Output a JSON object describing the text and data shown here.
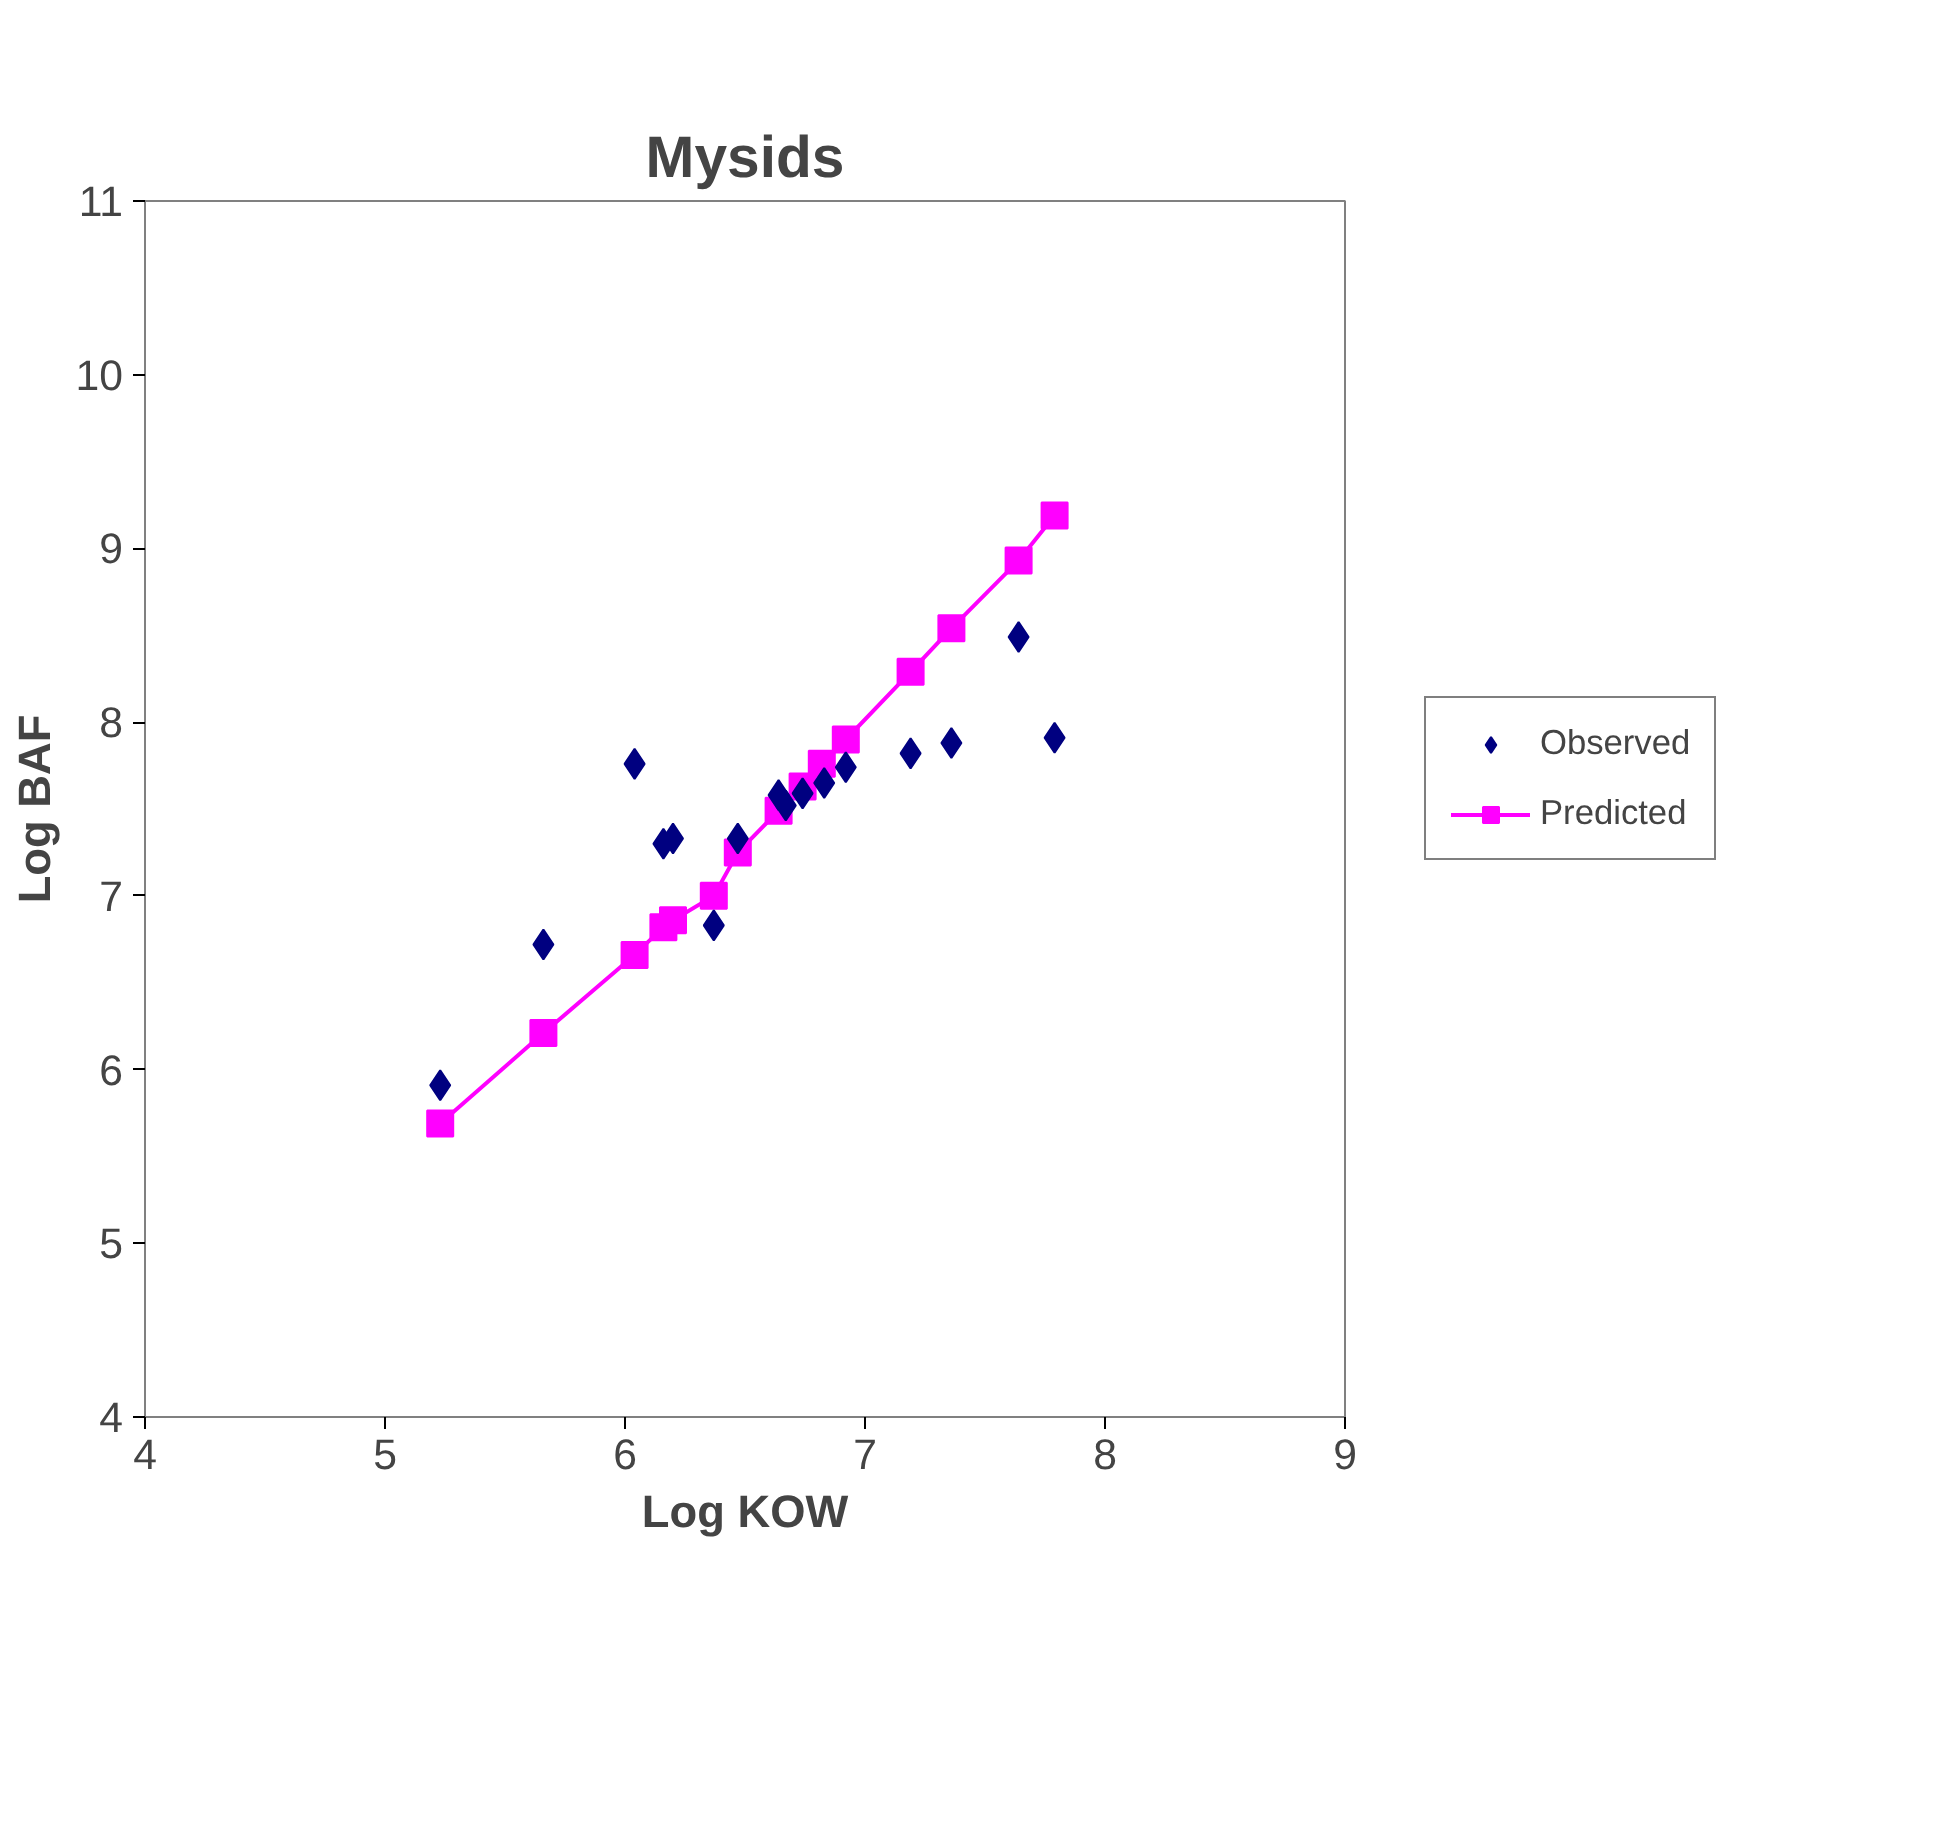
{
  "chart_data": {
    "type": "scatter",
    "title": "Mysids",
    "xlabel": "Log KOW",
    "ylabel": "Log BAF",
    "xlim": [
      4,
      9
    ],
    "xticks": [
      4,
      5,
      6,
      7,
      8,
      9
    ],
    "ylim": [
      4,
      11
    ],
    "yticks": [
      4,
      5,
      6,
      7,
      8,
      9,
      10,
      11
    ],
    "grid": false,
    "legend": "right",
    "series": [
      {
        "name": "Observed",
        "marker": "diamond",
        "color": "#000080",
        "x": [
          5.23,
          5.66,
          6.04,
          6.16,
          6.2,
          6.37,
          6.47,
          6.64,
          6.67,
          6.74,
          6.83,
          6.92,
          7.19,
          7.36,
          7.64,
          7.79
        ],
        "values": [
          5.91,
          6.72,
          7.76,
          7.3,
          7.33,
          6.83,
          7.33,
          7.58,
          7.52,
          7.59,
          7.65,
          7.74,
          7.82,
          7.88,
          8.49,
          7.91
        ]
      },
      {
        "name": "Predicted",
        "type": "line",
        "marker": "square",
        "color": "#ff00ff",
        "x": [
          5.23,
          5.66,
          6.04,
          6.16,
          6.2,
          6.37,
          6.47,
          6.64,
          6.74,
          6.82,
          6.92,
          7.19,
          7.36,
          7.64,
          7.79
        ],
        "values": [
          5.69,
          6.21,
          6.66,
          6.82,
          6.86,
          7.0,
          7.25,
          7.49,
          7.63,
          7.76,
          7.9,
          8.29,
          8.54,
          8.93,
          9.19
        ]
      }
    ]
  }
}
